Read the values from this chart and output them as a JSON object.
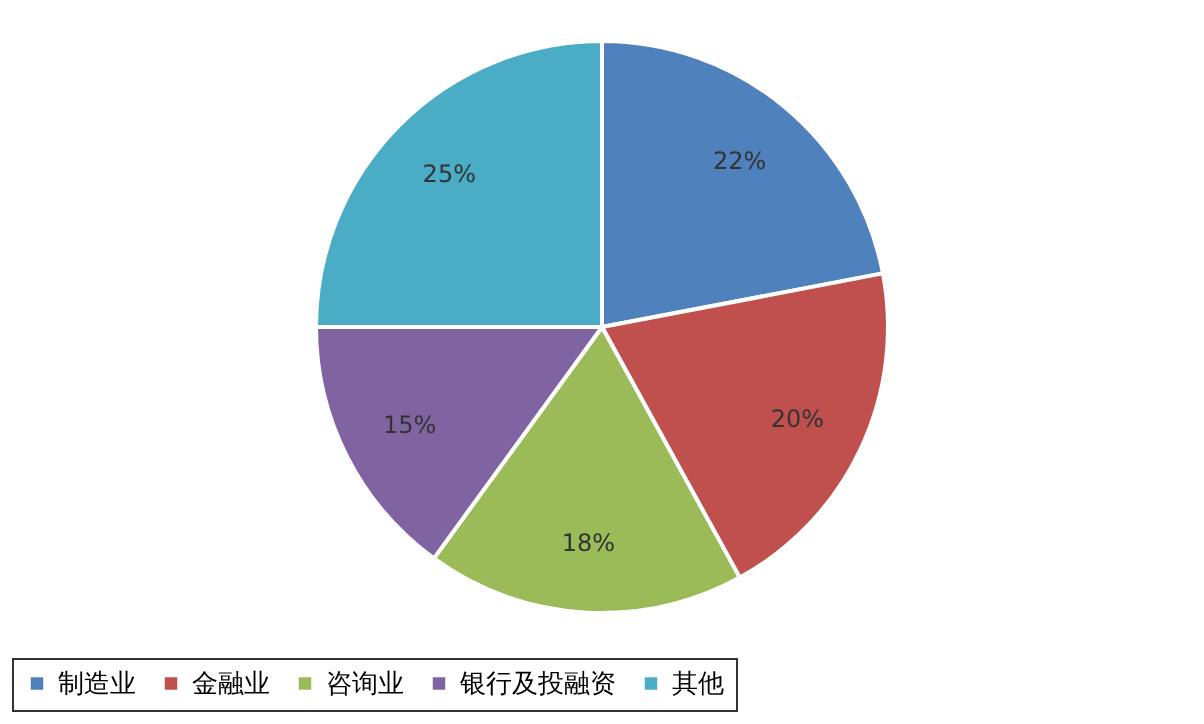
{
  "chart_data": {
    "type": "pie",
    "categories": [
      "制造业",
      "金融业",
      "咨询业",
      "银行及投融资",
      "其他"
    ],
    "values": [
      22,
      20,
      18,
      15,
      25
    ],
    "colors": [
      "#4f81bd",
      "#c0504d",
      "#9bbb59",
      "#8064a2",
      "#4bacc6"
    ],
    "value_labels": [
      "22%",
      "20%",
      "18%",
      "15%",
      "25%"
    ],
    "legend": "bottom"
  }
}
